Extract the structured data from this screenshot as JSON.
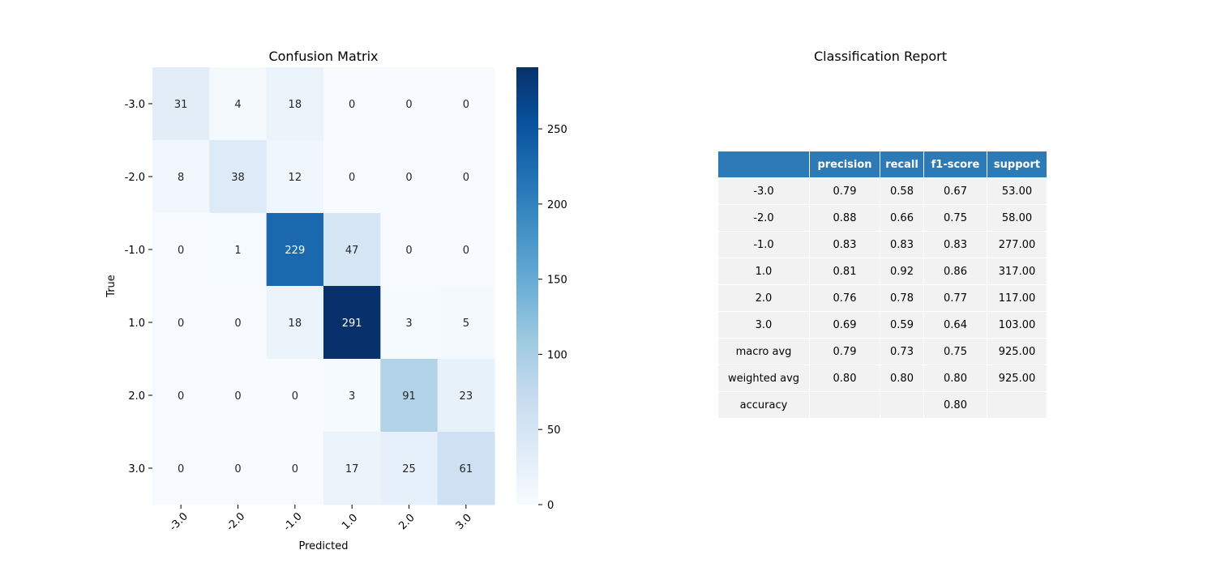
{
  "chart_data": [
    {
      "type": "heatmap",
      "title": "Confusion Matrix",
      "xlabel": "Predicted",
      "ylabel": "True",
      "x_categories": [
        "-3.0",
        "-2.0",
        "-1.0",
        "1.0",
        "2.0",
        "3.0"
      ],
      "y_categories": [
        "-3.0",
        "-2.0",
        "-1.0",
        "1.0",
        "2.0",
        "3.0"
      ],
      "values": [
        [
          31,
          4,
          18,
          0,
          0,
          0
        ],
        [
          8,
          38,
          12,
          0,
          0,
          0
        ],
        [
          0,
          1,
          229,
          47,
          0,
          0
        ],
        [
          0,
          0,
          18,
          291,
          3,
          5
        ],
        [
          0,
          0,
          0,
          3,
          91,
          23
        ],
        [
          0,
          0,
          0,
          17,
          25,
          61
        ]
      ],
      "colormap": "Blues",
      "vmin": 0,
      "vmax": 291,
      "colorbar_ticks": [
        0,
        50,
        100,
        150,
        200,
        250
      ]
    },
    {
      "type": "table",
      "title": "Classification Report",
      "columns": [
        "",
        "precision",
        "recall",
        "f1-score",
        "support"
      ],
      "rows": [
        [
          "-3.0",
          "0.79",
          "0.58",
          "0.67",
          "53.00"
        ],
        [
          "-2.0",
          "0.88",
          "0.66",
          "0.75",
          "58.00"
        ],
        [
          "-1.0",
          "0.83",
          "0.83",
          "0.83",
          "277.00"
        ],
        [
          "1.0",
          "0.81",
          "0.92",
          "0.86",
          "317.00"
        ],
        [
          "2.0",
          "0.76",
          "0.78",
          "0.77",
          "117.00"
        ],
        [
          "3.0",
          "0.69",
          "0.59",
          "0.64",
          "103.00"
        ],
        [
          "macro avg",
          "0.79",
          "0.73",
          "0.75",
          "925.00"
        ],
        [
          "weighted avg",
          "0.80",
          "0.80",
          "0.80",
          "925.00"
        ],
        [
          "accuracy",
          "",
          "",
          "0.80",
          ""
        ]
      ],
      "header_color": "#2c7bb6",
      "cell_color": "#f2f2f2"
    }
  ]
}
